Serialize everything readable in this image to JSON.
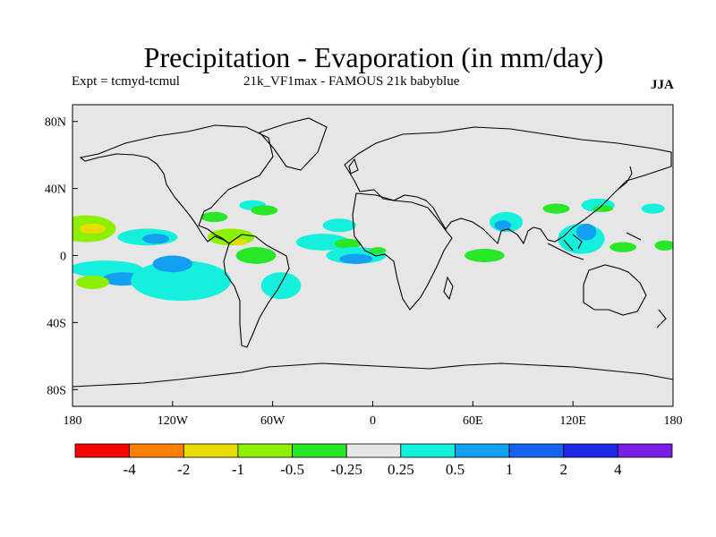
{
  "chart_data": {
    "type": "contour-map",
    "title": "Precipitation - Evaporation (in mm/day)",
    "experiment": "Expt = tcmyd-tcmul",
    "run": "21k_VF1max - FAMOUS 21k babyblue",
    "season": "JJA",
    "lon_range": [
      -180,
      180
    ],
    "lat_range": [
      -90,
      90
    ],
    "x_ticks": [
      {
        "lon": -180,
        "label": "180"
      },
      {
        "lon": -120,
        "label": "120W"
      },
      {
        "lon": -60,
        "label": "60W"
      },
      {
        "lon": 0,
        "label": "0"
      },
      {
        "lon": 60,
        "label": "60E"
      },
      {
        "lon": 120,
        "label": "120E"
      },
      {
        "lon": 180,
        "label": "180"
      }
    ],
    "y_ticks": [
      {
        "lat": 80,
        "label": "80N"
      },
      {
        "lat": 40,
        "label": "40N"
      },
      {
        "lat": 0,
        "label": "0"
      },
      {
        "lat": -40,
        "label": "40S"
      },
      {
        "lat": -80,
        "label": "80S"
      }
    ],
    "colorbar": {
      "colors": [
        "#ff0000",
        "#ff8000",
        "#e6dc00",
        "#8cf000",
        "#28e628",
        "#e6e6e6",
        "#14f0dc",
        "#14a0f0",
        "#1464f0",
        "#1e28e6",
        "#7a1ee6"
      ],
      "levels": [
        "-4",
        "-2",
        "-1",
        "-0.5",
        "-0.25",
        "0.25",
        "0.5",
        "1",
        "2",
        "4"
      ]
    },
    "anomalies": [
      {
        "lon": -172,
        "lat": 16,
        "rx": 18,
        "ry": 8,
        "value": -0.5
      },
      {
        "lon": -168,
        "lat": 16,
        "rx": 8,
        "ry": 3,
        "value": -1
      },
      {
        "lon": -135,
        "lat": 11,
        "rx": 18,
        "ry": 5,
        "value": 0.5
      },
      {
        "lon": -130,
        "lat": 10,
        "rx": 8,
        "ry": 3,
        "value": 1
      },
      {
        "lon": -160,
        "lat": -8,
        "rx": 22,
        "ry": 5,
        "value": 0.5
      },
      {
        "lon": -150,
        "lat": -14,
        "rx": 12,
        "ry": 4,
        "value": 1
      },
      {
        "lon": -168,
        "lat": -16,
        "rx": 10,
        "ry": 4,
        "value": -0.5
      },
      {
        "lon": -115,
        "lat": -15,
        "rx": 30,
        "ry": 12,
        "value": 0.5
      },
      {
        "lon": -120,
        "lat": -5,
        "rx": 12,
        "ry": 5,
        "value": 1
      },
      {
        "lon": -85,
        "lat": 11,
        "rx": 14,
        "ry": 5,
        "value": -0.5
      },
      {
        "lon": -80,
        "lat": 8,
        "rx": 5,
        "ry": 2,
        "value": -1
      },
      {
        "lon": -70,
        "lat": 0,
        "rx": 12,
        "ry": 5,
        "value": -0.25
      },
      {
        "lon": -95,
        "lat": 23,
        "rx": 8,
        "ry": 3,
        "value": -0.25
      },
      {
        "lon": -72,
        "lat": 30,
        "rx": 8,
        "ry": 3,
        "value": 0.5
      },
      {
        "lon": -65,
        "lat": 27,
        "rx": 8,
        "ry": 3,
        "value": -0.25
      },
      {
        "lon": -55,
        "lat": -18,
        "rx": 12,
        "ry": 8,
        "value": 0.5
      },
      {
        "lon": -20,
        "lat": 18,
        "rx": 10,
        "ry": 4,
        "value": 0.5
      },
      {
        "lon": -30,
        "lat": 8,
        "rx": 16,
        "ry": 5,
        "value": 0.5
      },
      {
        "lon": -15,
        "lat": 7,
        "rx": 8,
        "ry": 3,
        "value": -0.25
      },
      {
        "lon": -10,
        "lat": 0,
        "rx": 18,
        "ry": 5,
        "value": 0.5
      },
      {
        "lon": -10,
        "lat": -2,
        "rx": 10,
        "ry": 3,
        "value": 1
      },
      {
        "lon": 3,
        "lat": 3,
        "rx": 5,
        "ry": 2,
        "value": -0.25
      },
      {
        "lon": 80,
        "lat": 20,
        "rx": 10,
        "ry": 6,
        "value": 0.5
      },
      {
        "lon": 78,
        "lat": 18,
        "rx": 5,
        "ry": 3,
        "value": 1
      },
      {
        "lon": 67,
        "lat": 0,
        "rx": 12,
        "ry": 4,
        "value": -0.25
      },
      {
        "lon": 110,
        "lat": 28,
        "rx": 8,
        "ry": 3,
        "value": -0.25
      },
      {
        "lon": 125,
        "lat": 10,
        "rx": 14,
        "ry": 9,
        "value": 0.5
      },
      {
        "lon": 128,
        "lat": 14,
        "rx": 6,
        "ry": 5,
        "value": 1
      },
      {
        "lon": 135,
        "lat": 30,
        "rx": 10,
        "ry": 4,
        "value": 0.5
      },
      {
        "lon": 138,
        "lat": 28,
        "rx": 6,
        "ry": 2,
        "value": -0.25
      },
      {
        "lon": 150,
        "lat": 5,
        "rx": 8,
        "ry": 3,
        "value": -0.25
      },
      {
        "lon": 168,
        "lat": 28,
        "rx": 7,
        "ry": 3,
        "value": 0.5
      },
      {
        "lon": 175,
        "lat": 6,
        "rx": 6,
        "ry": 3,
        "value": -0.25
      }
    ]
  }
}
